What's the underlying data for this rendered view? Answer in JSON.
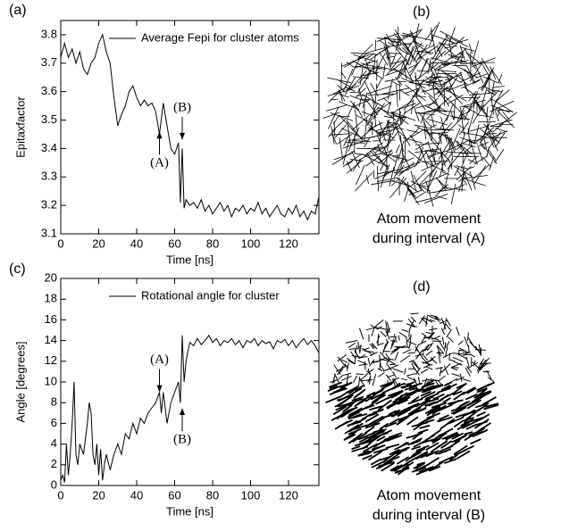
{
  "chart_data": [
    {
      "type": "line",
      "panel": "(a)",
      "xlabel": "Time [ns]",
      "ylabel": "Epitaxfactor",
      "xlim": [
        0,
        136
      ],
      "xticks": [
        0,
        20,
        40,
        60,
        80,
        100,
        120
      ],
      "ylim": [
        3.1,
        3.85
      ],
      "yticks": [
        3.1,
        3.2,
        3.3,
        3.4,
        3.5,
        3.6,
        3.7,
        3.8
      ],
      "x": [
        0,
        2,
        4,
        6,
        8,
        10,
        12,
        14,
        16,
        18,
        20,
        22,
        24,
        26,
        28,
        30,
        32,
        34,
        36,
        38,
        40,
        42,
        44,
        46,
        48,
        50,
        52,
        54,
        56,
        58,
        60,
        62,
        63,
        64,
        65,
        66,
        68,
        70,
        72,
        74,
        76,
        78,
        80,
        82,
        84,
        86,
        88,
        90,
        92,
        94,
        96,
        98,
        100,
        102,
        104,
        106,
        108,
        110,
        112,
        114,
        116,
        118,
        120,
        122,
        124,
        126,
        128,
        130,
        132,
        134,
        136
      ],
      "series": [
        {
          "name": "Average Fepi for cluster atoms",
          "color": "#000000",
          "values": [
            3.72,
            3.77,
            3.72,
            3.75,
            3.7,
            3.74,
            3.68,
            3.66,
            3.7,
            3.72,
            3.77,
            3.8,
            3.74,
            3.7,
            3.58,
            3.48,
            3.52,
            3.55,
            3.6,
            3.62,
            3.58,
            3.55,
            3.57,
            3.55,
            3.56,
            3.53,
            3.45,
            3.56,
            3.48,
            3.4,
            3.38,
            3.42,
            3.21,
            3.4,
            3.19,
            3.22,
            3.2,
            3.21,
            3.19,
            3.22,
            3.18,
            3.2,
            3.17,
            3.19,
            3.21,
            3.18,
            3.2,
            3.16,
            3.19,
            3.18,
            3.2,
            3.17,
            3.19,
            3.18,
            3.21,
            3.17,
            3.19,
            3.16,
            3.18,
            3.2,
            3.17,
            3.16,
            3.19,
            3.17,
            3.2,
            3.16,
            3.18,
            3.15,
            3.18,
            3.17,
            3.23
          ]
        }
      ],
      "annotations": [
        {
          "text": "(A)",
          "x": 52,
          "y": 3.46,
          "side": "below"
        },
        {
          "text": "(B)",
          "x": 64,
          "y": 3.43,
          "side": "above"
        }
      ]
    },
    {
      "type": "line",
      "panel": "(c)",
      "xlabel": "Time [ns]",
      "ylabel": "Angle [degrees]",
      "xlim": [
        0,
        136
      ],
      "xticks": [
        0,
        20,
        40,
        60,
        80,
        100,
        120
      ],
      "ylim": [
        0,
        20
      ],
      "yticks": [
        0,
        2,
        4,
        6,
        8,
        10,
        12,
        14,
        16,
        18,
        20
      ],
      "x": [
        0,
        1,
        2,
        3,
        4,
        5,
        6,
        7,
        8,
        9,
        10,
        12,
        14,
        15,
        16,
        17,
        18,
        19,
        20,
        21,
        22,
        23,
        24,
        26,
        28,
        30,
        32,
        34,
        36,
        38,
        40,
        42,
        44,
        46,
        48,
        50,
        52,
        53,
        54,
        56,
        58,
        60,
        62,
        63,
        64,
        65,
        66,
        67,
        68,
        70,
        72,
        74,
        76,
        78,
        80,
        82,
        84,
        86,
        88,
        90,
        92,
        94,
        96,
        98,
        100,
        102,
        104,
        106,
        108,
        110,
        112,
        114,
        116,
        118,
        120,
        122,
        124,
        126,
        128,
        130,
        132,
        134,
        136
      ],
      "series": [
        {
          "name": "Rotational angle for cluster",
          "color": "#000000",
          "values": [
            0.5,
            1,
            0.3,
            4,
            1,
            3,
            6,
            10,
            3,
            2,
            4,
            3,
            6,
            8,
            7,
            3,
            2,
            4,
            1,
            3.5,
            0.5,
            2,
            3,
            1.5,
            3,
            4,
            3,
            5,
            4.5,
            6,
            5,
            6.5,
            6,
            7,
            7.5,
            8,
            9,
            7,
            9,
            6,
            8,
            9,
            10,
            8,
            14.5,
            10,
            12,
            13,
            13.8,
            13.5,
            14.2,
            13.6,
            14,
            14.5,
            13.8,
            14.2,
            13.5,
            14,
            13.8,
            14.2,
            13.6,
            14,
            13.3,
            14,
            13.8,
            14.2,
            13.5,
            14,
            13.7,
            13.9,
            13.2,
            14,
            13.8,
            14.1,
            13.5,
            14,
            13.3,
            13.8,
            14.2,
            13.6,
            14,
            13.5,
            12.8
          ]
        }
      ],
      "annotations": [
        {
          "text": "(A)",
          "x": 52,
          "y": 9,
          "side": "above"
        },
        {
          "text": "(B)",
          "x": 64,
          "y": 7.5,
          "side": "below"
        }
      ]
    }
  ],
  "images": [
    {
      "panel": "(b)",
      "caption": [
        "Atom movement",
        "during interval (A)"
      ]
    },
    {
      "panel": "(d)",
      "caption": [
        "Atom movement",
        "during interval (B)"
      ]
    }
  ]
}
